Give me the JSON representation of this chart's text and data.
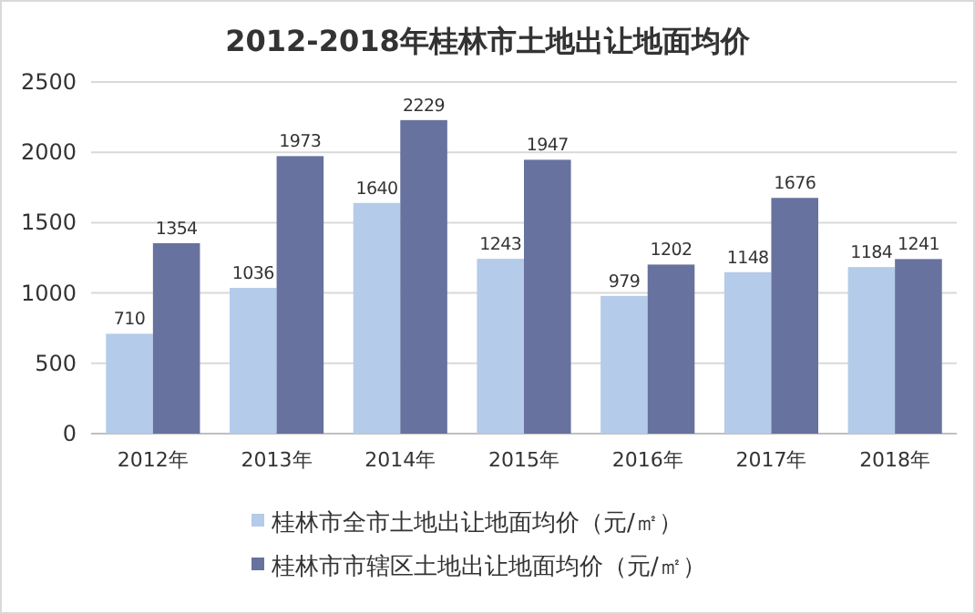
{
  "chart_data": {
    "type": "bar",
    "title": "2012-2018年桂林市土地出让地面均价",
    "categories": [
      "2012年",
      "2013年",
      "2014年",
      "2015年",
      "2016年",
      "2017年",
      "2018年"
    ],
    "series": [
      {
        "name": "桂林市全市土地出让地面均价（元/㎡）",
        "color": "#b4cbe9",
        "values": [
          710,
          1036,
          1640,
          1243,
          979,
          1148,
          1184
        ]
      },
      {
        "name": "桂林市市辖区土地出让地面均价（元/㎡）",
        "color": "#68729e",
        "values": [
          1354,
          1973,
          2229,
          1947,
          1202,
          1676,
          1241
        ]
      }
    ],
    "ylim": [
      0,
      2500
    ],
    "yticks": [
      0,
      500,
      1000,
      1500,
      2000,
      2500
    ],
    "grid": "y",
    "legend": "bottom left",
    "data_labels": true
  }
}
